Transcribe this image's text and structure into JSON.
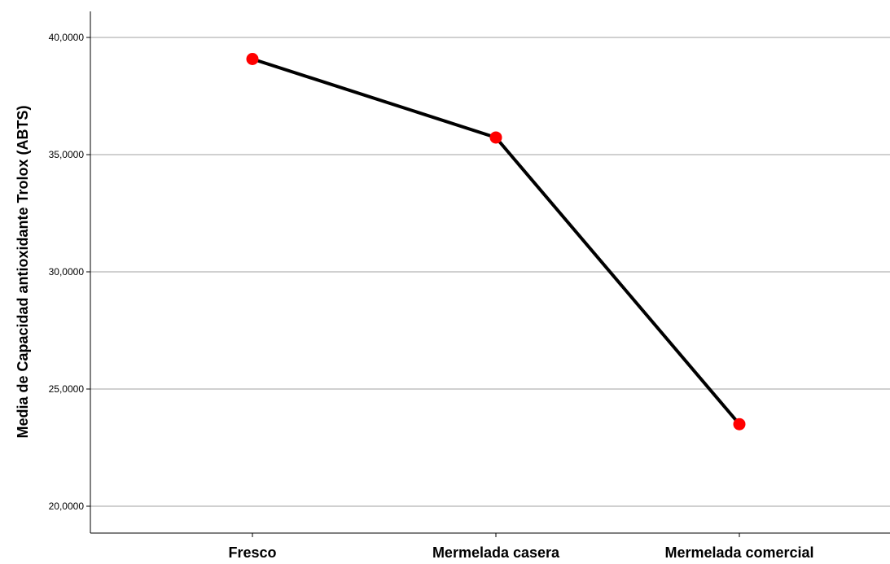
{
  "chart_data": {
    "type": "line",
    "title": "",
    "xlabel": "",
    "ylabel": "Media de Capacidad antioxidante Trolox (ABTS)",
    "categories": [
      "Fresco",
      "Mermelada casera",
      "Mermelada comercial"
    ],
    "series": [
      {
        "values": [
          39.08,
          35.73,
          23.5
        ],
        "line_color": "#000000",
        "marker_color": "#ff0000"
      }
    ],
    "ylim": [
      19.0,
      41.1
    ],
    "yticks": [
      20,
      25,
      30,
      35,
      40
    ],
    "ytick_labels": [
      "20,0000",
      "25,0000",
      "30,0000",
      "35,0000",
      "40,0000"
    ],
    "grid": true,
    "legend": "none"
  }
}
